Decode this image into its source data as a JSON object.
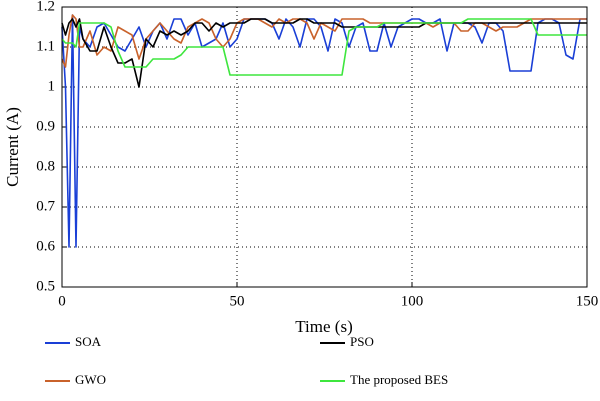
{
  "chart_data": {
    "type": "line",
    "x": [
      0,
      1,
      2,
      3,
      4,
      5,
      6,
      8,
      10,
      12,
      14,
      16,
      18,
      20,
      22,
      24,
      26,
      28,
      30,
      32,
      34,
      36,
      38,
      40,
      42,
      44,
      46,
      48,
      50,
      52,
      54,
      56,
      58,
      60,
      62,
      64,
      66,
      68,
      70,
      72,
      74,
      76,
      78,
      80,
      82,
      84,
      86,
      88,
      90,
      92,
      94,
      96,
      98,
      100,
      102,
      104,
      106,
      108,
      110,
      112,
      114,
      116,
      118,
      120,
      122,
      124,
      126,
      128,
      130,
      132,
      134,
      136,
      138,
      140,
      142,
      144,
      146,
      148,
      150
    ],
    "series": [
      {
        "name": "SOA",
        "color": "#1a3fd6",
        "values": [
          1.15,
          1.0,
          0.6,
          1.18,
          0.6,
          1.15,
          1.12,
          1.1,
          1.15,
          1.16,
          1.13,
          1.1,
          1.09,
          1.12,
          1.15,
          1.1,
          1.14,
          1.16,
          1.12,
          1.17,
          1.17,
          1.13,
          1.16,
          1.1,
          1.11,
          1.12,
          1.16,
          1.1,
          1.12,
          1.17,
          1.17,
          1.17,
          1.17,
          1.16,
          1.12,
          1.17,
          1.15,
          1.1,
          1.17,
          1.17,
          1.15,
          1.09,
          1.17,
          1.16,
          1.1,
          1.15,
          1.16,
          1.09,
          1.09,
          1.16,
          1.1,
          1.15,
          1.16,
          1.17,
          1.17,
          1.16,
          1.16,
          1.17,
          1.09,
          1.16,
          1.16,
          1.16,
          1.15,
          1.11,
          1.16,
          1.16,
          1.14,
          1.04,
          1.04,
          1.04,
          1.04,
          1.16,
          1.17,
          1.17,
          1.16,
          1.08,
          1.07,
          1.17,
          1.17
        ]
      },
      {
        "name": "GWO",
        "color": "#c9622b",
        "values": [
          1.07,
          1.05,
          1.13,
          1.18,
          1.17,
          1.1,
          1.1,
          1.14,
          1.08,
          1.1,
          1.09,
          1.15,
          1.14,
          1.13,
          1.07,
          1.12,
          1.14,
          1.16,
          1.14,
          1.12,
          1.11,
          1.15,
          1.16,
          1.17,
          1.16,
          1.12,
          1.1,
          1.12,
          1.16,
          1.17,
          1.17,
          1.17,
          1.16,
          1.15,
          1.17,
          1.16,
          1.17,
          1.17,
          1.16,
          1.12,
          1.16,
          1.15,
          1.14,
          1.17,
          1.17,
          1.17,
          1.17,
          1.16,
          1.16,
          1.16,
          1.16,
          1.16,
          1.16,
          1.16,
          1.16,
          1.16,
          1.15,
          1.16,
          1.16,
          1.16,
          1.14,
          1.14,
          1.16,
          1.16,
          1.15,
          1.14,
          1.15,
          1.15,
          1.15,
          1.16,
          1.17,
          1.17,
          1.17,
          1.17,
          1.17,
          1.17,
          1.17,
          1.17,
          1.17
        ]
      },
      {
        "name": "PSO",
        "color": "#000000",
        "values": [
          1.16,
          1.13,
          1.16,
          1.17,
          1.15,
          1.17,
          1.12,
          1.09,
          1.09,
          1.15,
          1.1,
          1.06,
          1.06,
          1.07,
          1.0,
          1.12,
          1.1,
          1.14,
          1.13,
          1.14,
          1.13,
          1.14,
          1.16,
          1.16,
          1.14,
          1.16,
          1.15,
          1.16,
          1.16,
          1.16,
          1.17,
          1.17,
          1.17,
          1.16,
          1.16,
          1.16,
          1.16,
          1.17,
          1.17,
          1.16,
          1.16,
          1.16,
          1.16,
          1.15,
          1.15,
          1.15,
          1.15,
          1.15,
          1.15,
          1.15,
          1.15,
          1.15,
          1.15,
          1.15,
          1.15,
          1.16,
          1.16,
          1.16,
          1.16,
          1.16,
          1.16,
          1.16,
          1.16,
          1.16,
          1.16,
          1.16,
          1.16,
          1.16,
          1.16,
          1.16,
          1.16,
          1.16,
          1.16,
          1.16,
          1.16,
          1.16,
          1.16,
          1.16,
          1.16
        ]
      },
      {
        "name": "The proposed BES",
        "color": "#3ee63e",
        "values": [
          1.12,
          1.11,
          1.11,
          1.11,
          1.1,
          1.16,
          1.16,
          1.16,
          1.16,
          1.16,
          1.15,
          1.09,
          1.05,
          1.05,
          1.05,
          1.05,
          1.07,
          1.07,
          1.07,
          1.07,
          1.08,
          1.1,
          1.1,
          1.1,
          1.1,
          1.1,
          1.1,
          1.03,
          1.03,
          1.03,
          1.03,
          1.03,
          1.03,
          1.03,
          1.03,
          1.03,
          1.03,
          1.03,
          1.03,
          1.03,
          1.03,
          1.03,
          1.03,
          1.03,
          1.14,
          1.15,
          1.15,
          1.15,
          1.15,
          1.16,
          1.16,
          1.16,
          1.16,
          1.16,
          1.16,
          1.16,
          1.16,
          1.16,
          1.16,
          1.16,
          1.16,
          1.17,
          1.17,
          1.17,
          1.17,
          1.17,
          1.17,
          1.17,
          1.17,
          1.17,
          1.17,
          1.13,
          1.13,
          1.13,
          1.13,
          1.13,
          1.13,
          1.13,
          1.13
        ]
      }
    ],
    "xlabel": "Time (s)",
    "ylabel": "Current (A)",
    "xlim": [
      0,
      150
    ],
    "xticks": [
      0,
      50,
      100,
      150
    ],
    "ylim": [
      0.5,
      1.2
    ],
    "yticks": [
      0.5,
      0.6,
      0.7,
      0.8,
      0.9,
      1,
      1.1,
      1.2
    ],
    "grid": true,
    "legend": "bottom"
  }
}
